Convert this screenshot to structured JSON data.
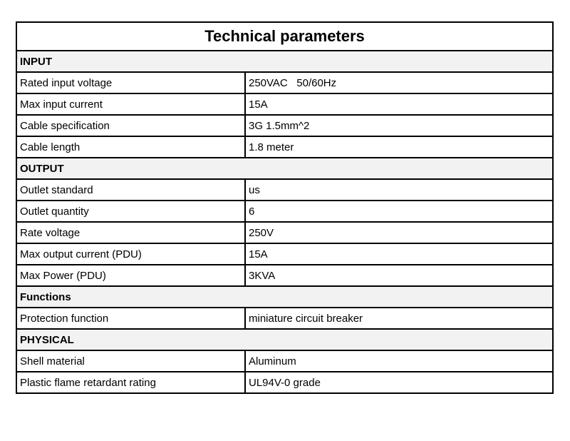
{
  "title": "Technical parameters",
  "sections": [
    {
      "heading": "INPUT",
      "rows": [
        [
          "Rated input voltage",
          "250VAC   50/60Hz"
        ],
        [
          "Max input current",
          "15A"
        ],
        [
          "Cable specification",
          "3G 1.5mm^2"
        ],
        [
          "Cable length",
          "1.8 meter"
        ]
      ]
    },
    {
      "heading": "OUTPUT",
      "rows": [
        [
          "Outlet standard",
          "us"
        ],
        [
          "Outlet quantity",
          "6"
        ],
        [
          "Rate voltage",
          "250V"
        ],
        [
          "Max output current (PDU)",
          "15A"
        ],
        [
          "Max Power (PDU)",
          "3KVA"
        ]
      ]
    },
    {
      "heading": "Functions",
      "rows": [
        [
          "Protection function",
          "miniature circuit breaker"
        ]
      ]
    },
    {
      "heading": "PHYSICAL",
      "rows": [
        [
          "Shell material",
          "Aluminum"
        ],
        [
          "Plastic flame retardant rating",
          "UL94V-0 grade"
        ]
      ]
    }
  ]
}
